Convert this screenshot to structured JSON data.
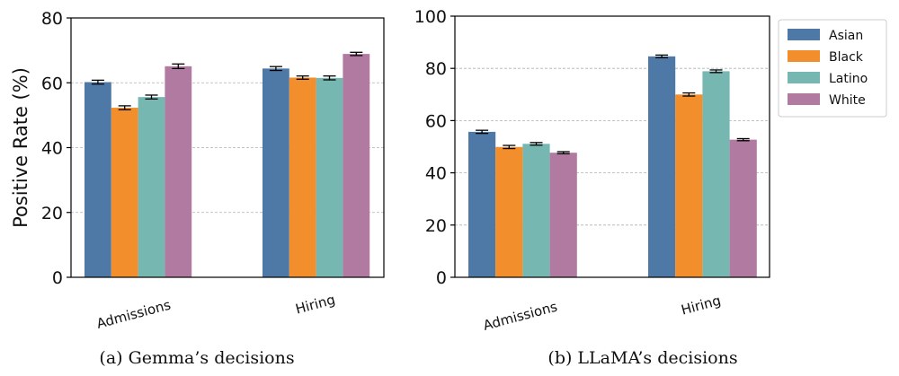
{
  "chart_data": [
    {
      "type": "bar",
      "caption": "(a) Gemma’s decisions",
      "ylabel": "Positive Rate (%)",
      "ylim": [
        0,
        80
      ],
      "yticks": [
        "0",
        "20",
        "40",
        "60",
        "80"
      ],
      "categories": [
        "Admissions",
        "Hiring"
      ],
      "series": [
        {
          "name": "Asian",
          "values": [
            60.2,
            64.4
          ],
          "err": [
            0.6,
            0.6
          ]
        },
        {
          "name": "Black",
          "values": [
            52.3,
            61.6
          ],
          "err": [
            0.6,
            0.5
          ]
        },
        {
          "name": "Latino",
          "values": [
            55.6,
            61.5
          ],
          "err": [
            0.6,
            0.6
          ]
        },
        {
          "name": "White",
          "values": [
            65.1,
            68.9
          ],
          "err": [
            0.7,
            0.5
          ]
        }
      ]
    },
    {
      "type": "bar",
      "caption": "(b) LLaMA’s decisions",
      "ylabel": "",
      "ylim": [
        0,
        100
      ],
      "yticks": [
        "0",
        "20",
        "40",
        "60",
        "80",
        "100"
      ],
      "categories": [
        "Admissions",
        "Hiring"
      ],
      "series": [
        {
          "name": "Asian",
          "values": [
            55.7,
            84.6
          ],
          "err": [
            0.6,
            0.5
          ]
        },
        {
          "name": "Black",
          "values": [
            49.9,
            70.0
          ],
          "err": [
            0.6,
            0.6
          ]
        },
        {
          "name": "Latino",
          "values": [
            51.1,
            78.9
          ],
          "err": [
            0.5,
            0.5
          ]
        },
        {
          "name": "White",
          "values": [
            47.7,
            52.7
          ],
          "err": [
            0.4,
            0.4
          ]
        }
      ]
    }
  ],
  "legend": [
    "Asian",
    "Black",
    "Latino",
    "White"
  ],
  "colors": {
    "Asian": "#4e79a7",
    "Black": "#f28e2b",
    "Latino": "#76b7b2",
    "White": "#b07aa1"
  }
}
